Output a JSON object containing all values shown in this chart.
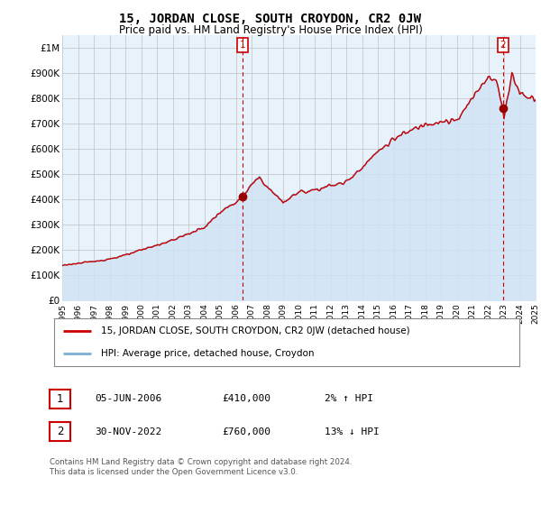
{
  "title": "15, JORDAN CLOSE, SOUTH CROYDON, CR2 0JW",
  "subtitle": "Price paid vs. HM Land Registry's House Price Index (HPI)",
  "ylim": [
    0,
    1050000
  ],
  "yticks": [
    0,
    100000,
    200000,
    300000,
    400000,
    500000,
    600000,
    700000,
    800000,
    900000,
    1000000
  ],
  "ytick_labels": [
    "£0",
    "£100K",
    "£200K",
    "£300K",
    "£400K",
    "£500K",
    "£600K",
    "£700K",
    "£800K",
    "£900K",
    "£1M"
  ],
  "hpi_color": "#7aaed4",
  "hpi_fill_color": "#d0e4f5",
  "price_color": "#cc0000",
  "marker_color": "#990000",
  "grid_color": "#c0c0c0",
  "background_color": "#ffffff",
  "plot_bg_color": "#e8f2fb",
  "sale1_x": 2006.42,
  "sale1_y": 410000,
  "sale2_x": 2022.92,
  "sale2_y": 760000,
  "vline_color": "#cc0000",
  "annotation_box_color": "#cc0000",
  "legend_label1": "15, JORDAN CLOSE, SOUTH CROYDON, CR2 0JW (detached house)",
  "legend_label2": "HPI: Average price, detached house, Croydon",
  "table_row1": [
    "1",
    "05-JUN-2006",
    "£410,000",
    "2% ↑ HPI"
  ],
  "table_row2": [
    "2",
    "30-NOV-2022",
    "£760,000",
    "13% ↓ HPI"
  ],
  "footnote": "Contains HM Land Registry data © Crown copyright and database right 2024.\nThis data is licensed under the Open Government Licence v3.0.",
  "xmin": 1995,
  "xmax": 2025
}
